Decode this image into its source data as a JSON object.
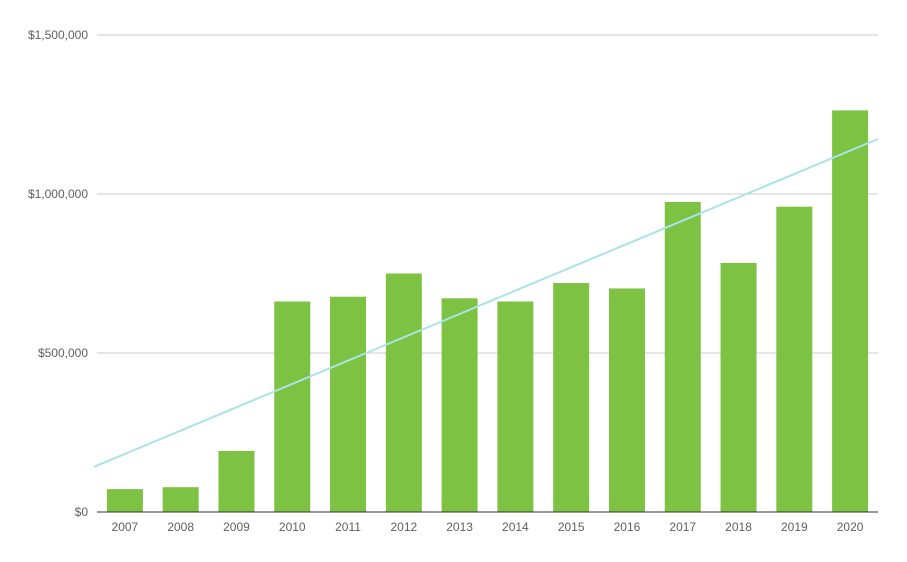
{
  "chart_data": {
    "type": "bar",
    "title": "",
    "xlabel": "",
    "ylabel": "",
    "categories": [
      "2007",
      "2008",
      "2009",
      "2010",
      "2011",
      "2012",
      "2013",
      "2014",
      "2015",
      "2016",
      "2017",
      "2018",
      "2019",
      "2020"
    ],
    "values": [
      72000,
      78000,
      192000,
      662000,
      677000,
      750000,
      672000,
      662000,
      720000,
      703000,
      975000,
      783000,
      960000,
      1263000
    ],
    "yticks": [
      0,
      500000,
      1000000,
      1500000
    ],
    "ytick_labels": [
      "$0",
      "$500,000",
      "$1,000,000",
      "$1,500,000"
    ],
    "ylim": [
      0,
      1500000
    ],
    "grid": true,
    "legend": "none",
    "trendline": {
      "type": "linear",
      "start_value": 142000,
      "end_value": 1173000
    },
    "colors": {
      "bar": "#7dc243",
      "trendline": "#a9e4e6",
      "grid": "#cccccc",
      "baseline": "#333333",
      "text": "#5f5f5f"
    }
  }
}
